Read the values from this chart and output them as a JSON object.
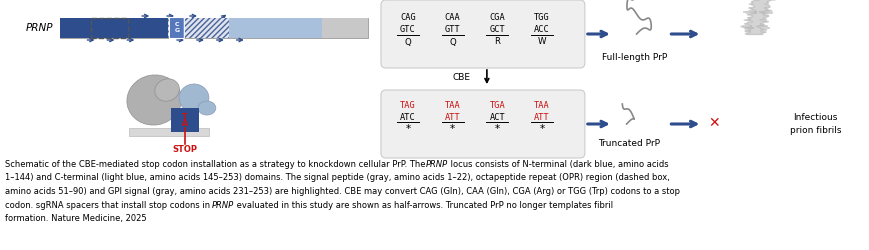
{
  "bg_color": "#ffffff",
  "dark_blue": "#2e4d8c",
  "mid_blue": "#5577bb",
  "light_blue": "#a8c0dc",
  "gray_bar": "#c8c8c8",
  "red_color": "#cc1111",
  "arrow_color": "#2e4d8c",
  "box_bg": "#efefef",
  "box_edge": "#cccccc",
  "upper_codons": [
    {
      "top": "CAG",
      "bot": "GTC",
      "aa": "Q",
      "top_red": false,
      "bot_red": false
    },
    {
      "top": "CAA",
      "bot": "GTT",
      "aa": "Q",
      "top_red": false,
      "bot_red": false
    },
    {
      "top": "CGA",
      "bot": "GCT",
      "aa": "R",
      "top_red": false,
      "bot_red": false
    },
    {
      "top": "TGG",
      "bot": "ACC",
      "aa": "W",
      "top_red": false,
      "bot_red": false
    }
  ],
  "lower_codons": [
    {
      "top": "TAG",
      "bot": "ATC",
      "star": true,
      "top_red": true,
      "bot_red": false
    },
    {
      "top": "TAA",
      "bot": "ATT",
      "star": true,
      "top_red": true,
      "bot_red": true
    },
    {
      "top": "TGA",
      "bot": "ACT",
      "star": true,
      "top_red": true,
      "bot_red": false
    },
    {
      "top": "TAA",
      "bot": "ATT",
      "star": true,
      "top_red": true,
      "bot_red": true
    }
  ],
  "caption_parts": [
    [
      {
        "text": "Schematic of the CBE-mediated stop codon installation as a strategy to knockdown cellular PrP. The ",
        "italic": false
      },
      {
        "text": "PRNP",
        "italic": true
      },
      {
        "text": " locus consists of N-terminal (dark blue, amino acids",
        "italic": false
      }
    ],
    [
      {
        "text": "1–144) and C-terminal (light blue, amino acids 145–253) domains. The signal peptide (gray, amino acids 1–22), octapeptide repeat (OPR) region (dashed box,",
        "italic": false
      }
    ],
    [
      {
        "text": "amino acids 51–90) and GPI signal (gray, amino acids 231–253) are highlighted. CBE may convert CAG (Gln), CAA (Gln), CGA (Arg) or TGG (Trp) codons to a stop",
        "italic": false
      }
    ],
    [
      {
        "text": "codon. sgRNA spacers that install stop codons in ",
        "italic": false
      },
      {
        "text": "PRNP",
        "italic": true
      },
      {
        "text": " evaluated in this study are shown as half-arrows. Truncated PrP no longer templates fibril",
        "italic": false
      }
    ],
    [
      {
        "text": "formation. Nature Medicine, 2025",
        "italic": false
      }
    ]
  ]
}
